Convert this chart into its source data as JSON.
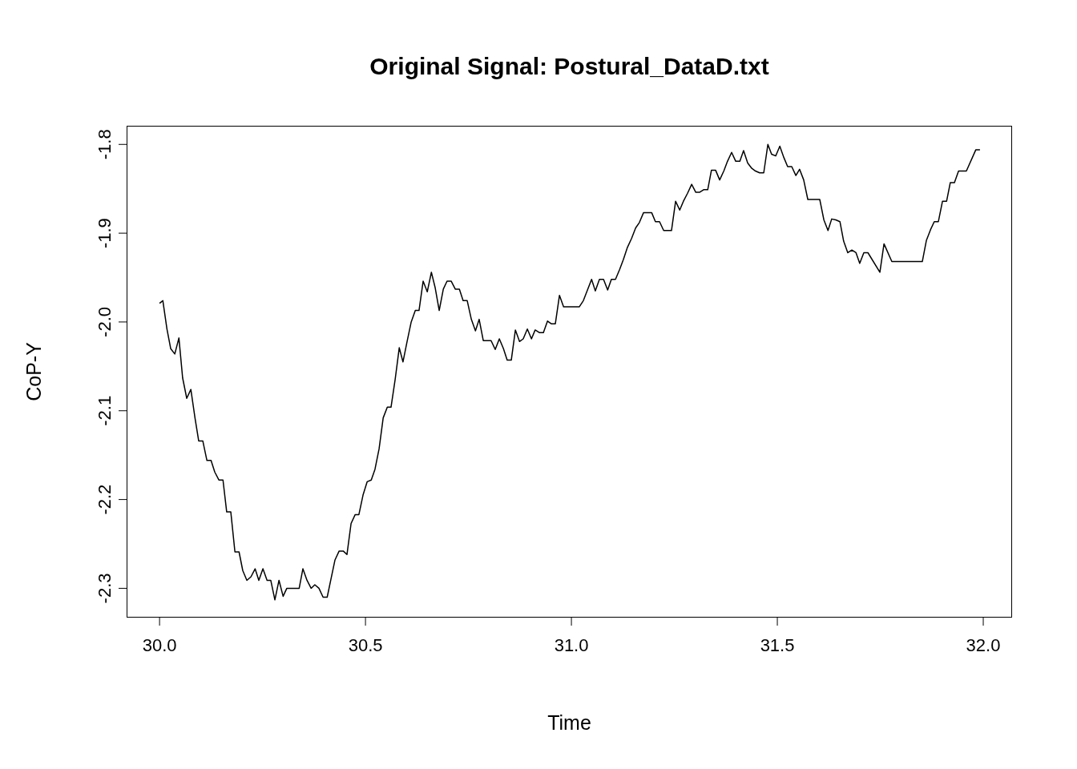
{
  "chart_data": {
    "type": "line",
    "title": "Original Signal: Postural_DataD.txt",
    "xlabel": "Time",
    "ylabel": "CoP-Y",
    "xlim": [
      29.92,
      32.07
    ],
    "ylim": [
      -2.333,
      -1.779
    ],
    "xticks": [
      {
        "value": 30,
        "label": "30.0"
      },
      {
        "value": 30.5,
        "label": "30.5"
      },
      {
        "value": 31,
        "label": "31.0"
      },
      {
        "value": 31.5,
        "label": "31.5"
      },
      {
        "value": 32,
        "label": "32.0"
      }
    ],
    "yticks": [
      {
        "value": -2.3,
        "label": "-2.3"
      },
      {
        "value": -2.2,
        "label": "-2.2"
      },
      {
        "value": -2.1,
        "label": "-2.1"
      },
      {
        "value": -2.0,
        "label": "-2.0"
      },
      {
        "value": -1.9,
        "label": "-1.9"
      },
      {
        "value": -1.8,
        "label": "-1.8"
      }
    ],
    "marker": "none",
    "line_style": "solid",
    "x": [
      30.0,
      30.008,
      30.018,
      30.027,
      30.037,
      30.047,
      30.056,
      30.066,
      30.076,
      30.086,
      30.095,
      30.105,
      30.115,
      30.125,
      30.134,
      30.144,
      30.154,
      30.163,
      30.173,
      30.183,
      30.193,
      30.202,
      30.212,
      30.222,
      30.232,
      30.241,
      30.251,
      30.261,
      30.27,
      30.28,
      30.29,
      30.3,
      30.309,
      30.319,
      30.339,
      30.348,
      30.358,
      30.368,
      30.377,
      30.387,
      30.397,
      30.407,
      30.416,
      30.426,
      30.436,
      30.446,
      30.455,
      30.465,
      30.475,
      30.484,
      30.494,
      30.504,
      30.514,
      30.523,
      30.533,
      30.543,
      30.553,
      30.562,
      30.572,
      30.582,
      30.591,
      30.601,
      30.611,
      30.621,
      30.63,
      30.64,
      30.65,
      30.66,
      30.669,
      30.679,
      30.689,
      30.698,
      30.708,
      30.718,
      30.728,
      30.737,
      30.747,
      30.757,
      30.767,
      30.776,
      30.786,
      30.796,
      30.805,
      30.815,
      30.825,
      30.835,
      30.844,
      30.854,
      30.864,
      30.874,
      30.883,
      30.893,
      30.903,
      30.912,
      30.922,
      30.932,
      30.942,
      30.951,
      30.961,
      30.971,
      30.981,
      31.0,
      31.019,
      31.029,
      31.039,
      31.049,
      31.058,
      31.068,
      31.078,
      31.088,
      31.097,
      31.107,
      31.117,
      31.126,
      31.136,
      31.146,
      31.156,
      31.165,
      31.175,
      31.185,
      31.195,
      31.204,
      31.214,
      31.224,
      31.233,
      31.243,
      31.253,
      31.263,
      31.272,
      31.282,
      31.292,
      31.302,
      31.311,
      31.321,
      31.331,
      31.34,
      31.35,
      31.36,
      31.37,
      31.379,
      31.389,
      31.399,
      31.409,
      31.418,
      31.428,
      31.438,
      31.447,
      31.457,
      31.467,
      31.477,
      31.486,
      31.496,
      31.506,
      31.516,
      31.525,
      31.535,
      31.545,
      31.554,
      31.564,
      31.574,
      31.584,
      31.603,
      31.613,
      31.623,
      31.632,
      31.642,
      31.652,
      31.661,
      31.671,
      31.681,
      31.691,
      31.7,
      31.71,
      31.72,
      31.749,
      31.759,
      31.778,
      31.852,
      31.862,
      31.872,
      31.881,
      31.891,
      31.901,
      31.911,
      31.92,
      31.93,
      31.94,
      31.959,
      31.982,
      31.992
    ],
    "series": [
      {
        "color": "#000000",
        "values": [
          -1.979,
          -1.976,
          -2.008,
          -2.03,
          -2.036,
          -2.018,
          -2.063,
          -2.086,
          -2.076,
          -2.108,
          -2.134,
          -2.134,
          -2.156,
          -2.156,
          -2.169,
          -2.178,
          -2.178,
          -2.214,
          -2.214,
          -2.259,
          -2.259,
          -2.28,
          -2.291,
          -2.287,
          -2.278,
          -2.291,
          -2.278,
          -2.291,
          -2.291,
          -2.313,
          -2.291,
          -2.309,
          -2.3,
          -2.3,
          -2.3,
          -2.278,
          -2.291,
          -2.3,
          -2.296,
          -2.3,
          -2.31,
          -2.31,
          -2.29,
          -2.268,
          -2.258,
          -2.258,
          -2.262,
          -2.227,
          -2.217,
          -2.217,
          -2.195,
          -2.18,
          -2.178,
          -2.166,
          -2.143,
          -2.108,
          -2.096,
          -2.096,
          -2.065,
          -2.029,
          -2.045,
          -2.022,
          -2.0,
          -1.987,
          -1.987,
          -1.954,
          -1.966,
          -1.944,
          -1.961,
          -1.987,
          -1.963,
          -1.954,
          -1.954,
          -1.963,
          -1.963,
          -1.976,
          -1.976,
          -1.997,
          -2.01,
          -1.997,
          -2.021,
          -2.021,
          -2.021,
          -2.031,
          -2.019,
          -2.03,
          -2.043,
          -2.043,
          -2.009,
          -2.022,
          -2.019,
          -2.008,
          -2.019,
          -2.009,
          -2.012,
          -2.012,
          -1.999,
          -2.002,
          -2.002,
          -1.97,
          -1.983,
          -1.983,
          -1.983,
          -1.976,
          -1.964,
          -1.952,
          -1.965,
          -1.952,
          -1.952,
          -1.964,
          -1.952,
          -1.952,
          -1.941,
          -1.93,
          -1.916,
          -1.906,
          -1.894,
          -1.888,
          -1.877,
          -1.877,
          -1.877,
          -1.887,
          -1.887,
          -1.897,
          -1.897,
          -1.897,
          -1.864,
          -1.874,
          -1.864,
          -1.855,
          -1.845,
          -1.854,
          -1.854,
          -1.851,
          -1.851,
          -1.829,
          -1.829,
          -1.84,
          -1.83,
          -1.819,
          -1.809,
          -1.819,
          -1.819,
          -1.807,
          -1.821,
          -1.827,
          -1.83,
          -1.832,
          -1.832,
          -1.8,
          -1.811,
          -1.813,
          -1.802,
          -1.815,
          -1.825,
          -1.825,
          -1.835,
          -1.828,
          -1.84,
          -1.862,
          -1.862,
          -1.862,
          -1.885,
          -1.897,
          -1.884,
          -1.885,
          -1.887,
          -1.909,
          -1.922,
          -1.919,
          -1.922,
          -1.934,
          -1.922,
          -1.922,
          -1.944,
          -1.912,
          -1.932,
          -1.932,
          -1.908,
          -1.896,
          -1.887,
          -1.887,
          -1.864,
          -1.864,
          -1.843,
          -1.843,
          -1.83,
          -1.83,
          -1.806,
          -1.806
        ]
      }
    ]
  }
}
